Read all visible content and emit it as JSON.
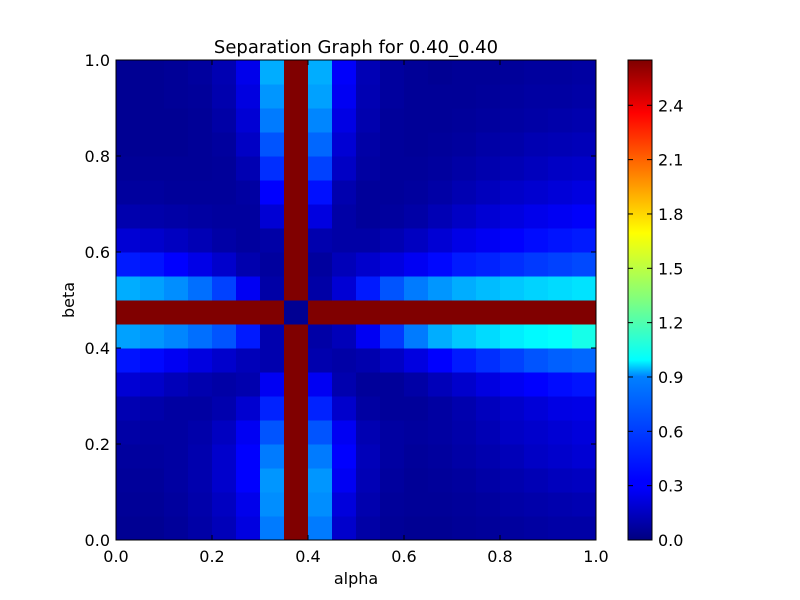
{
  "chart_data": {
    "type": "heatmap",
    "title": "Separation Graph for 0.40_0.40",
    "xlabel": "alpha",
    "ylabel": "beta",
    "xlim": [
      0.0,
      1.0
    ],
    "ylim": [
      0.0,
      1.0
    ],
    "xticks": [
      "0.0",
      "0.2",
      "0.4",
      "0.6",
      "0.8",
      "1.0"
    ],
    "yticks": [
      "0.0",
      "0.2",
      "0.4",
      "0.6",
      "0.8",
      "1.0"
    ],
    "grid_size": 20,
    "colormap": "jet",
    "colorbar": {
      "min": 0.0,
      "max": 2.65,
      "ticks": [
        "0.0",
        "0.3",
        "0.6",
        "0.9",
        "1.2",
        "1.5",
        "1.8",
        "2.1",
        "2.4"
      ]
    },
    "values": [
      [
        0.05,
        0.05,
        0.07,
        0.1,
        0.15,
        0.25,
        0.65,
        2.65,
        0.65,
        0.2,
        0.1,
        0.06,
        0.05,
        0.05,
        0.06,
        0.07,
        0.08,
        0.09,
        0.1,
        0.1
      ],
      [
        0.06,
        0.06,
        0.08,
        0.11,
        0.17,
        0.28,
        0.7,
        2.65,
        0.7,
        0.24,
        0.12,
        0.07,
        0.06,
        0.06,
        0.07,
        0.08,
        0.1,
        0.11,
        0.12,
        0.13
      ],
      [
        0.07,
        0.07,
        0.09,
        0.12,
        0.2,
        0.33,
        0.72,
        2.65,
        0.72,
        0.3,
        0.14,
        0.08,
        0.06,
        0.07,
        0.08,
        0.1,
        0.12,
        0.14,
        0.16,
        0.17
      ],
      [
        0.08,
        0.08,
        0.09,
        0.12,
        0.2,
        0.33,
        0.65,
        2.65,
        0.65,
        0.33,
        0.15,
        0.09,
        0.07,
        0.08,
        0.1,
        0.12,
        0.15,
        0.18,
        0.2,
        0.22
      ],
      [
        0.1,
        0.09,
        0.09,
        0.11,
        0.17,
        0.3,
        0.55,
        2.65,
        0.55,
        0.3,
        0.13,
        0.09,
        0.08,
        0.09,
        0.11,
        0.14,
        0.18,
        0.2,
        0.22,
        0.24
      ],
      [
        0.13,
        0.11,
        0.09,
        0.09,
        0.12,
        0.21,
        0.42,
        2.65,
        0.42,
        0.2,
        0.09,
        0.07,
        0.07,
        0.09,
        0.12,
        0.16,
        0.2,
        0.23,
        0.26,
        0.27
      ],
      [
        0.22,
        0.19,
        0.15,
        0.12,
        0.1,
        0.12,
        0.3,
        2.65,
        0.3,
        0.12,
        0.07,
        0.07,
        0.1,
        0.15,
        0.2,
        0.25,
        0.3,
        0.33,
        0.36,
        0.38
      ],
      [
        0.38,
        0.35,
        0.3,
        0.25,
        0.2,
        0.15,
        0.12,
        2.65,
        0.12,
        0.1,
        0.12,
        0.18,
        0.25,
        0.33,
        0.4,
        0.45,
        0.5,
        0.55,
        0.58,
        0.6
      ],
      [
        0.75,
        0.72,
        0.68,
        0.62,
        0.55,
        0.4,
        0.12,
        2.65,
        0.1,
        0.15,
        0.3,
        0.48,
        0.65,
        0.78,
        0.85,
        0.9,
        0.95,
        0.98,
        1.0,
        1.05
      ],
      [
        2.65,
        2.65,
        2.65,
        2.65,
        2.65,
        2.65,
        2.65,
        0.05,
        2.65,
        2.65,
        2.65,
        2.65,
        2.65,
        2.65,
        2.65,
        2.65,
        2.65,
        2.65,
        2.65,
        2.65
      ],
      [
        0.78,
        0.75,
        0.7,
        0.62,
        0.5,
        0.3,
        0.1,
        2.65,
        0.1,
        0.22,
        0.4,
        0.55,
        0.65,
        0.72,
        0.78,
        0.82,
        0.85,
        0.88,
        0.9,
        0.92
      ],
      [
        0.4,
        0.38,
        0.33,
        0.27,
        0.2,
        0.12,
        0.08,
        2.65,
        0.08,
        0.15,
        0.2,
        0.25,
        0.3,
        0.35,
        0.4,
        0.42,
        0.45,
        0.48,
        0.5,
        0.52
      ],
      [
        0.22,
        0.2,
        0.17,
        0.14,
        0.1,
        0.08,
        0.1,
        2.65,
        0.12,
        0.1,
        0.1,
        0.13,
        0.17,
        0.22,
        0.27,
        0.3,
        0.33,
        0.36,
        0.38,
        0.4
      ],
      [
        0.12,
        0.11,
        0.1,
        0.09,
        0.08,
        0.08,
        0.22,
        2.65,
        0.25,
        0.1,
        0.07,
        0.08,
        0.1,
        0.14,
        0.18,
        0.22,
        0.25,
        0.28,
        0.3,
        0.32
      ],
      [
        0.08,
        0.08,
        0.07,
        0.07,
        0.07,
        0.09,
        0.33,
        2.65,
        0.37,
        0.12,
        0.07,
        0.07,
        0.08,
        0.1,
        0.13,
        0.16,
        0.19,
        0.21,
        0.23,
        0.25
      ],
      [
        0.06,
        0.06,
        0.06,
        0.06,
        0.07,
        0.13,
        0.45,
        2.65,
        0.5,
        0.18,
        0.09,
        0.07,
        0.07,
        0.08,
        0.1,
        0.12,
        0.14,
        0.16,
        0.18,
        0.19
      ],
      [
        0.05,
        0.05,
        0.05,
        0.06,
        0.08,
        0.18,
        0.55,
        2.65,
        0.6,
        0.22,
        0.1,
        0.07,
        0.06,
        0.07,
        0.08,
        0.1,
        0.11,
        0.13,
        0.14,
        0.15
      ],
      [
        0.05,
        0.05,
        0.05,
        0.06,
        0.1,
        0.22,
        0.65,
        2.65,
        0.68,
        0.26,
        0.12,
        0.07,
        0.06,
        0.06,
        0.07,
        0.08,
        0.09,
        0.1,
        0.11,
        0.12
      ],
      [
        0.05,
        0.05,
        0.06,
        0.07,
        0.12,
        0.25,
        0.72,
        2.65,
        0.75,
        0.3,
        0.13,
        0.08,
        0.06,
        0.06,
        0.06,
        0.07,
        0.08,
        0.09,
        0.09,
        0.1
      ],
      [
        0.05,
        0.05,
        0.06,
        0.08,
        0.13,
        0.28,
        0.78,
        2.65,
        0.78,
        0.32,
        0.14,
        0.08,
        0.06,
        0.05,
        0.06,
        0.06,
        0.07,
        0.08,
        0.08,
        0.09
      ]
    ]
  }
}
